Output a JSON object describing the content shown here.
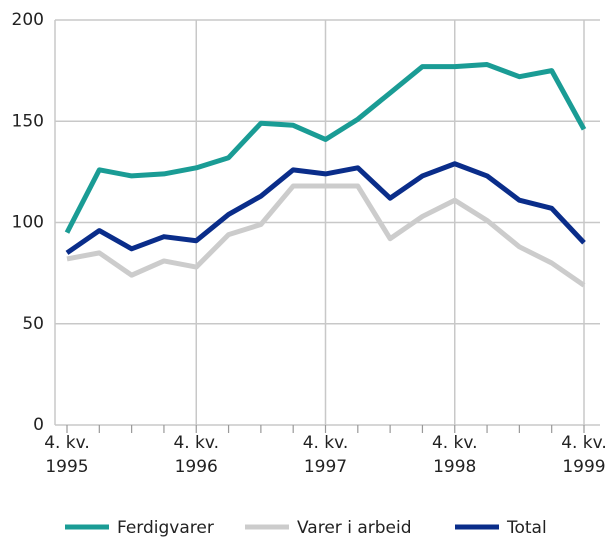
{
  "chart_data": {
    "type": "line",
    "categories": [
      "4. kv. 1995",
      null,
      null,
      null,
      "4. kv. 1996",
      null,
      null,
      null,
      "4. kv. 1997",
      null,
      null,
      null,
      "4. kv. 1998",
      null,
      null,
      null,
      "4. kv. 1999"
    ],
    "series": [
      {
        "name": "Ferdigvarer",
        "color": "#1a9c95",
        "values": [
          95,
          126,
          123,
          124,
          127,
          132,
          149,
          148,
          141,
          151,
          164,
          177,
          177,
          178,
          172,
          175,
          146
        ]
      },
      {
        "name": "Varer i arbeid",
        "color": "#cccccc",
        "values": [
          82,
          85,
          74,
          81,
          78,
          94,
          99,
          118,
          118,
          118,
          92,
          103,
          111,
          101,
          88,
          80,
          69
        ]
      },
      {
        "name": "Total",
        "color": "#0a2d8a",
        "values": [
          85,
          96,
          87,
          93,
          91,
          104,
          113,
          126,
          124,
          127,
          112,
          123,
          129,
          123,
          111,
          107,
          90
        ]
      }
    ],
    "ylim": [
      0,
      200
    ],
    "yticks": [
      0,
      50,
      100,
      150,
      200
    ],
    "grid": true
  }
}
